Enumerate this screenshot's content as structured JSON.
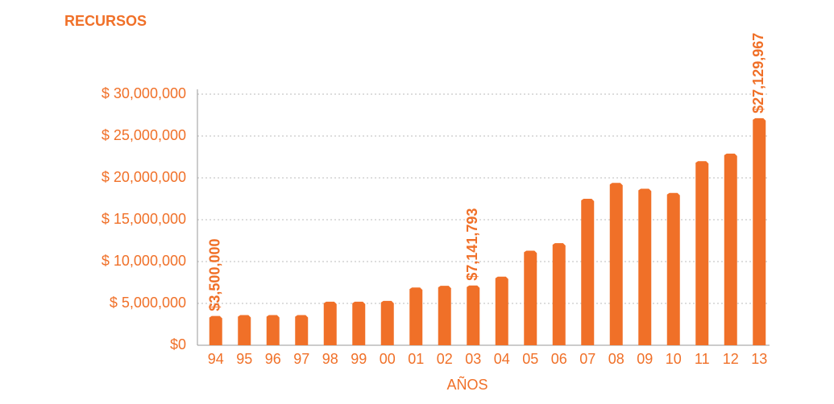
{
  "chart_data": {
    "type": "bar",
    "title": "RECURSOS",
    "x_label": "AÑOS",
    "categories": [
      "94",
      "95",
      "96",
      "97",
      "98",
      "99",
      "00",
      "01",
      "02",
      "03",
      "04",
      "05",
      "06",
      "07",
      "08",
      "09",
      "10",
      "11",
      "12",
      "13"
    ],
    "values": [
      3500000,
      3600000,
      3600000,
      3600000,
      5200000,
      5200000,
      5300000,
      6900000,
      7100000,
      7141793,
      8200000,
      11300000,
      12200000,
      17500000,
      19400000,
      18700000,
      18200000,
      22000000,
      22900000,
      27129967
    ],
    "value_labels": [
      "$3,500,000",
      null,
      null,
      null,
      null,
      null,
      null,
      null,
      null,
      "$7,141,793",
      null,
      null,
      null,
      null,
      null,
      null,
      null,
      null,
      null,
      "$27,129,967"
    ],
    "color": "#f07028",
    "ylim": [
      0,
      30000000
    ],
    "yticks": [
      {
        "value": 0,
        "label": "$0"
      },
      {
        "value": 5000000,
        "label": "$ 5,000,000"
      },
      {
        "value": 10000000,
        "label": "$ 10,000,000"
      },
      {
        "value": 15000000,
        "label": "$ 15,000,000"
      },
      {
        "value": 20000000,
        "label": "$ 20,000,000"
      },
      {
        "value": 25000000,
        "label": "$ 25,000,000"
      },
      {
        "value": 30000000,
        "label": "$ 30,000,000"
      }
    ],
    "grid": true
  }
}
